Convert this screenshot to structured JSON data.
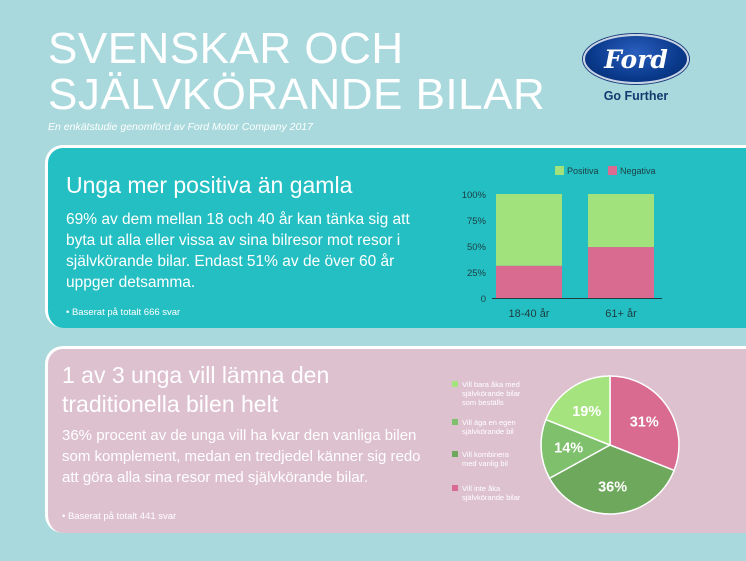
{
  "header": {
    "title_line1": "SVENSKAR OCH",
    "title_line2": "SJÄLVKÖRANDE BILAR",
    "subtitle": "En enkätstudie genomförd av Ford Motor Company 2017"
  },
  "logo": {
    "wordmark": "Ford",
    "tagline": "Go Further"
  },
  "section1": {
    "heading": "Unga mer positiva än gamla",
    "body": "69% av dem mellan 18 och 40 år kan tänka sig att byta ut alla eller vissa av sina bilresor mot resor i självkörande bilar. Endast 51% av de över 60 år uppger detsamma.",
    "note": "• Baserat på totalt 666 svar"
  },
  "section2": {
    "heading_line1": "1 av 3 unga vill lämna den",
    "heading_line2": "traditionella bilen helt",
    "body": "36% procent av de unga vill ha kvar den vanliga bilen som komplement, medan en tredjedel känner sig redo att göra alla sina resor med självkörande bilar.",
    "note": "• Baserat på totalt 441 svar"
  },
  "colors": {
    "background": "#a9d9dc",
    "panel_teal": "#24bfc3",
    "panel_pink": "#ddc1cf",
    "positive": "#a1e27d",
    "negative": "#d86b8f",
    "pie_light_green": "#a5e37f",
    "pie_mid_green": "#7fc06c",
    "pie_dark_green": "#6ea85c",
    "pie_pink": "#d86b8f"
  },
  "chart_data": [
    {
      "type": "bar",
      "stacked": true,
      "categories": [
        "18-40 år",
        "61+ år"
      ],
      "series": [
        {
          "name": "Positiva",
          "color": "#a1e27d",
          "values": [
            69,
            51
          ]
        },
        {
          "name": "Negativa",
          "color": "#d86b8f",
          "values": [
            31,
            49
          ]
        }
      ],
      "yticks": [
        "100%",
        "75%",
        "50%",
        "25%",
        "0"
      ],
      "ylim": [
        0,
        100
      ],
      "legend": "top-right",
      "grid": false
    },
    {
      "type": "pie",
      "slices": [
        {
          "label": "Vill inte åka självkörande bilar",
          "value": 31,
          "text": "31%",
          "color": "#d86b8f"
        },
        {
          "label": "Vill kombinera med vanlig bil",
          "value": 36,
          "text": "36%",
          "color": "#6ea85c"
        },
        {
          "label": "Vill äga en egen självkörande bil",
          "value": 14,
          "text": "14%",
          "color": "#7fc06c"
        },
        {
          "label": "Vill bara åka med självkörande bilar som beställs",
          "value": 19,
          "text": "19%",
          "color": "#a5e37f"
        }
      ],
      "legend_lines": [
        {
          "lines": [
            "Vill bara åka med",
            "självkörande bilar",
            "som beställs"
          ],
          "color": "#a5e37f"
        },
        {
          "lines": [
            "Vill äga en egen",
            "självkörande bil"
          ],
          "color": "#7fc06c"
        },
        {
          "lines": [
            "Vill kombinera",
            "med vanlig bil"
          ],
          "color": "#6ea85c"
        },
        {
          "lines": [
            "Vill inte åka",
            "självkörande bilar"
          ],
          "color": "#d86b8f"
        }
      ],
      "legend": "left"
    }
  ]
}
